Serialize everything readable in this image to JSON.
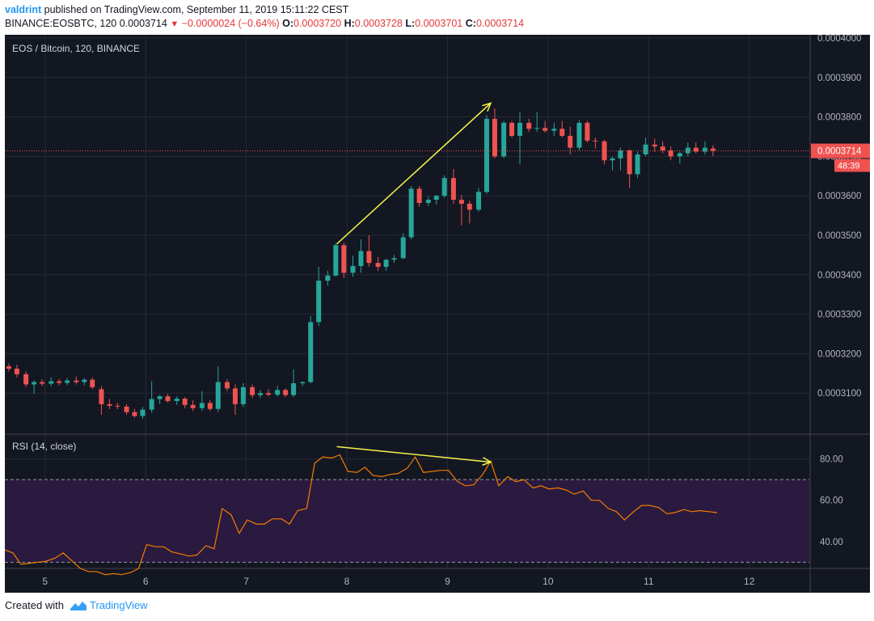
{
  "header": {
    "author": "valdrint",
    "published_text": "published on TradingView.com, September 11, 2019 15:11:22 CEST",
    "symbol": "BINANCE:EOSBTC, 120",
    "last_price": "0.0003714",
    "change": "−0.0000024 (−0.64%)",
    "o_label": "O:",
    "o_value": "0.0003720",
    "h_label": "H:",
    "h_value": "0.0003728",
    "l_label": "L:",
    "l_value": "0.0003701",
    "c_label": "C:",
    "c_value": "0.0003714"
  },
  "footer": {
    "created_with": "Created with",
    "brand": "TradingView"
  },
  "colors": {
    "background": "#131722",
    "up": "#26a69a",
    "down": "#ef5350",
    "rsi_line": "#f57c00",
    "annotation": "#f5f548",
    "rsi_band": "#2a1a3f",
    "price_tag": "#ef5350"
  },
  "chart_data": [
    {
      "type": "candlestick",
      "title": "EOS / Bitcoin, 120, BINANCE",
      "x_ticks": [
        "5",
        "6",
        "7",
        "8",
        "9",
        "10",
        "11",
        "12"
      ],
      "y_ticks": [
        "0.0003100",
        "0.0003200",
        "0.0003300",
        "0.0003400",
        "0.0003500",
        "0.0003600",
        "0.0003700",
        "0.0003800",
        "0.0003900",
        "0.0004000"
      ],
      "ylim": [
        0.0003,
        0.0004
      ],
      "xlim": [
        4.6,
        13.2
      ],
      "last_price_tag": "0.0003714",
      "countdown_tag": "48:39",
      "candles": [
        {
          "t": 4.64,
          "o": 0.0003168,
          "h": 0.0003175,
          "l": 0.0003155,
          "c": 0.0003162
        },
        {
          "t": 4.72,
          "o": 0.0003162,
          "h": 0.0003172,
          "l": 0.000314,
          "c": 0.0003148
        },
        {
          "t": 4.81,
          "o": 0.0003148,
          "h": 0.0003155,
          "l": 0.0003115,
          "c": 0.0003122
        },
        {
          "t": 4.89,
          "o": 0.0003122,
          "h": 0.0003132,
          "l": 0.0003098,
          "c": 0.0003128
        },
        {
          "t": 4.97,
          "o": 0.0003128,
          "h": 0.0003135,
          "l": 0.0003118,
          "c": 0.0003124
        },
        {
          "t": 5.06,
          "o": 0.0003124,
          "h": 0.000314,
          "l": 0.0003118,
          "c": 0.000313
        },
        {
          "t": 5.14,
          "o": 0.000313,
          "h": 0.0003136,
          "l": 0.000312,
          "c": 0.0003126
        },
        {
          "t": 5.22,
          "o": 0.0003126,
          "h": 0.0003138,
          "l": 0.000312,
          "c": 0.0003132
        },
        {
          "t": 5.31,
          "o": 0.0003132,
          "h": 0.0003142,
          "l": 0.0003122,
          "c": 0.0003128
        },
        {
          "t": 5.39,
          "o": 0.0003128,
          "h": 0.0003138,
          "l": 0.000312,
          "c": 0.0003134
        },
        {
          "t": 5.47,
          "o": 0.0003134,
          "h": 0.000314,
          "l": 0.000311,
          "c": 0.0003115
        },
        {
          "t": 5.56,
          "o": 0.000311,
          "h": 0.0003118,
          "l": 0.0003045,
          "c": 0.0003072
        },
        {
          "t": 5.64,
          "o": 0.0003072,
          "h": 0.0003085,
          "l": 0.000306,
          "c": 0.0003068
        },
        {
          "t": 5.72,
          "o": 0.0003068,
          "h": 0.0003075,
          "l": 0.000306,
          "c": 0.0003066
        },
        {
          "t": 5.81,
          "o": 0.0003066,
          "h": 0.0003072,
          "l": 0.0003045,
          "c": 0.0003052
        },
        {
          "t": 5.89,
          "o": 0.0003052,
          "h": 0.000306,
          "l": 0.0003038,
          "c": 0.0003042
        },
        {
          "t": 5.97,
          "o": 0.0003042,
          "h": 0.0003065,
          "l": 0.0003035,
          "c": 0.0003058
        },
        {
          "t": 6.06,
          "o": 0.0003058,
          "h": 0.000313,
          "l": 0.000305,
          "c": 0.0003085
        },
        {
          "t": 6.14,
          "o": 0.0003085,
          "h": 0.0003095,
          "l": 0.0003072,
          "c": 0.0003092
        },
        {
          "t": 6.22,
          "o": 0.0003092,
          "h": 0.0003098,
          "l": 0.0003076,
          "c": 0.000308
        },
        {
          "t": 6.31,
          "o": 0.000308,
          "h": 0.0003092,
          "l": 0.000307,
          "c": 0.0003086
        },
        {
          "t": 6.39,
          "o": 0.0003086,
          "h": 0.000309,
          "l": 0.0003062,
          "c": 0.000307
        },
        {
          "t": 6.47,
          "o": 0.000307,
          "h": 0.0003082,
          "l": 0.0003055,
          "c": 0.0003062
        },
        {
          "t": 6.56,
          "o": 0.0003062,
          "h": 0.0003105,
          "l": 0.0003055,
          "c": 0.0003075
        },
        {
          "t": 6.64,
          "o": 0.0003075,
          "h": 0.0003082,
          "l": 0.0003055,
          "c": 0.000306
        },
        {
          "t": 6.72,
          "o": 0.000306,
          "h": 0.0003168,
          "l": 0.0003052,
          "c": 0.0003128
        },
        {
          "t": 6.81,
          "o": 0.0003128,
          "h": 0.0003135,
          "l": 0.0003105,
          "c": 0.0003112
        },
        {
          "t": 6.89,
          "o": 0.0003112,
          "h": 0.0003122,
          "l": 0.0003045,
          "c": 0.0003072
        },
        {
          "t": 6.97,
          "o": 0.0003072,
          "h": 0.0003125,
          "l": 0.0003065,
          "c": 0.0003115
        },
        {
          "t": 7.06,
          "o": 0.0003115,
          "h": 0.0003122,
          "l": 0.0003088,
          "c": 0.0003095
        },
        {
          "t": 7.14,
          "o": 0.0003095,
          "h": 0.0003108,
          "l": 0.0003088,
          "c": 0.00031
        },
        {
          "t": 7.22,
          "o": 0.00031,
          "h": 0.000311,
          "l": 0.0003092,
          "c": 0.0003096
        },
        {
          "t": 7.31,
          "o": 0.0003096,
          "h": 0.0003118,
          "l": 0.0003092,
          "c": 0.0003108
        },
        {
          "t": 7.39,
          "o": 0.0003108,
          "h": 0.0003112,
          "l": 0.000309,
          "c": 0.0003095
        },
        {
          "t": 7.47,
          "o": 0.0003095,
          "h": 0.000316,
          "l": 0.000309,
          "c": 0.0003125
        },
        {
          "t": 7.56,
          "o": 0.0003125,
          "h": 0.000313,
          "l": 0.0003118,
          "c": 0.0003128
        },
        {
          "t": 7.64,
          "o": 0.0003128,
          "h": 0.0003295,
          "l": 0.0003125,
          "c": 0.000328
        },
        {
          "t": 7.72,
          "o": 0.000328,
          "h": 0.000342,
          "l": 0.000327,
          "c": 0.0003385
        },
        {
          "t": 7.81,
          "o": 0.0003385,
          "h": 0.000341,
          "l": 0.0003372,
          "c": 0.0003398
        },
        {
          "t": 7.89,
          "o": 0.0003398,
          "h": 0.000348,
          "l": 0.0003395,
          "c": 0.0003475
        },
        {
          "t": 7.97,
          "o": 0.0003475,
          "h": 0.0003482,
          "l": 0.0003392,
          "c": 0.0003405
        },
        {
          "t": 8.06,
          "o": 0.0003405,
          "h": 0.0003448,
          "l": 0.0003395,
          "c": 0.0003422
        },
        {
          "t": 8.14,
          "o": 0.0003422,
          "h": 0.000349,
          "l": 0.0003405,
          "c": 0.000346
        },
        {
          "t": 8.22,
          "o": 0.000346,
          "h": 0.00035,
          "l": 0.000342,
          "c": 0.000343
        },
        {
          "t": 8.31,
          "o": 0.000343,
          "h": 0.0003445,
          "l": 0.000341,
          "c": 0.000342
        },
        {
          "t": 8.39,
          "o": 0.000342,
          "h": 0.000344,
          "l": 0.000341,
          "c": 0.0003438
        },
        {
          "t": 8.47,
          "o": 0.0003438,
          "h": 0.000345,
          "l": 0.000343,
          "c": 0.0003442
        },
        {
          "t": 8.56,
          "o": 0.0003442,
          "h": 0.0003505,
          "l": 0.000344,
          "c": 0.0003495
        },
        {
          "t": 8.64,
          "o": 0.0003495,
          "h": 0.0003625,
          "l": 0.000349,
          "c": 0.0003618
        },
        {
          "t": 8.72,
          "o": 0.0003618,
          "h": 0.0003625,
          "l": 0.0003572,
          "c": 0.0003582
        },
        {
          "t": 8.81,
          "o": 0.0003582,
          "h": 0.0003598,
          "l": 0.0003575,
          "c": 0.000359
        },
        {
          "t": 8.89,
          "o": 0.000359,
          "h": 0.0003602,
          "l": 0.0003578,
          "c": 0.00036
        },
        {
          "t": 8.97,
          "o": 0.00036,
          "h": 0.0003652,
          "l": 0.0003595,
          "c": 0.0003645
        },
        {
          "t": 9.06,
          "o": 0.0003645,
          "h": 0.0003668,
          "l": 0.000358,
          "c": 0.000359
        },
        {
          "t": 9.14,
          "o": 0.000359,
          "h": 0.0003602,
          "l": 0.0003525,
          "c": 0.000358
        },
        {
          "t": 9.22,
          "o": 0.000358,
          "h": 0.0003588,
          "l": 0.000353,
          "c": 0.0003565
        },
        {
          "t": 9.31,
          "o": 0.0003565,
          "h": 0.000362,
          "l": 0.000356,
          "c": 0.000361
        },
        {
          "t": 9.39,
          "o": 0.000361,
          "h": 0.0003805,
          "l": 0.0003605,
          "c": 0.0003795
        },
        {
          "t": 9.47,
          "o": 0.0003795,
          "h": 0.0003822,
          "l": 0.0003695,
          "c": 0.00037
        },
        {
          "t": 9.56,
          "o": 0.00037,
          "h": 0.000379,
          "l": 0.0003695,
          "c": 0.0003785
        },
        {
          "t": 9.64,
          "o": 0.0003785,
          "h": 0.000379,
          "l": 0.0003748,
          "c": 0.0003752
        },
        {
          "t": 9.72,
          "o": 0.0003752,
          "h": 0.0003812,
          "l": 0.000368,
          "c": 0.0003785
        },
        {
          "t": 9.81,
          "o": 0.0003785,
          "h": 0.0003795,
          "l": 0.0003762,
          "c": 0.000377
        },
        {
          "t": 9.89,
          "o": 0.000377,
          "h": 0.0003812,
          "l": 0.0003762,
          "c": 0.0003772
        },
        {
          "t": 9.97,
          "o": 0.0003772,
          "h": 0.000379,
          "l": 0.000376,
          "c": 0.0003765
        },
        {
          "t": 10.06,
          "o": 0.0003765,
          "h": 0.0003785,
          "l": 0.0003752,
          "c": 0.000377
        },
        {
          "t": 10.14,
          "o": 0.000377,
          "h": 0.000379,
          "l": 0.0003748,
          "c": 0.0003752
        },
        {
          "t": 10.22,
          "o": 0.0003752,
          "h": 0.0003775,
          "l": 0.0003705,
          "c": 0.0003722
        },
        {
          "t": 10.31,
          "o": 0.0003722,
          "h": 0.0003792,
          "l": 0.0003715,
          "c": 0.0003785
        },
        {
          "t": 10.39,
          "o": 0.0003785,
          "h": 0.000379,
          "l": 0.0003735,
          "c": 0.000374
        },
        {
          "t": 10.47,
          "o": 0.000374,
          "h": 0.0003748,
          "l": 0.000372,
          "c": 0.0003738
        },
        {
          "t": 10.56,
          "o": 0.0003738,
          "h": 0.0003742,
          "l": 0.000368,
          "c": 0.000369
        },
        {
          "t": 10.64,
          "o": 0.000369,
          "h": 0.00037,
          "l": 0.0003665,
          "c": 0.0003695
        },
        {
          "t": 10.72,
          "o": 0.0003695,
          "h": 0.0003722,
          "l": 0.0003665,
          "c": 0.0003715
        },
        {
          "t": 10.81,
          "o": 0.0003715,
          "h": 0.0003718,
          "l": 0.000362,
          "c": 0.0003655
        },
        {
          "t": 10.89,
          "o": 0.0003655,
          "h": 0.0003712,
          "l": 0.0003645,
          "c": 0.0003705
        },
        {
          "t": 10.97,
          "o": 0.0003705,
          "h": 0.0003748,
          "l": 0.00037,
          "c": 0.000373
        },
        {
          "t": 11.06,
          "o": 0.000373,
          "h": 0.0003745,
          "l": 0.0003712,
          "c": 0.0003725
        },
        {
          "t": 11.14,
          "o": 0.0003725,
          "h": 0.0003738,
          "l": 0.0003708,
          "c": 0.0003715
        },
        {
          "t": 11.22,
          "o": 0.0003715,
          "h": 0.0003725,
          "l": 0.000369,
          "c": 0.00037
        },
        {
          "t": 11.31,
          "o": 0.00037,
          "h": 0.0003712,
          "l": 0.0003682,
          "c": 0.0003708
        },
        {
          "t": 11.39,
          "o": 0.0003708,
          "h": 0.0003735,
          "l": 0.00037,
          "c": 0.0003722
        },
        {
          "t": 11.47,
          "o": 0.0003722,
          "h": 0.0003735,
          "l": 0.0003708,
          "c": 0.0003712
        },
        {
          "t": 11.56,
          "o": 0.0003712,
          "h": 0.0003738,
          "l": 0.0003705,
          "c": 0.0003722
        },
        {
          "t": 11.64,
          "o": 0.000372,
          "h": 0.0003728,
          "l": 0.0003701,
          "c": 0.0003714
        }
      ],
      "annotation": {
        "from": [
          7.9,
          0.0003478
        ],
        "to": [
          9.43,
          0.0003835
        ]
      }
    },
    {
      "type": "line",
      "title": "RSI (14, close)",
      "y_ticks": [
        "40.00",
        "60.00",
        "80.00"
      ],
      "ylim": [
        27,
        92
      ],
      "band": [
        30,
        70
      ],
      "x": [
        4.6,
        4.68,
        4.76,
        4.85,
        4.93,
        5.01,
        5.1,
        5.18,
        5.26,
        5.35,
        5.43,
        5.51,
        5.6,
        5.68,
        5.76,
        5.85,
        5.93,
        6.01,
        6.1,
        6.18,
        6.26,
        6.35,
        6.43,
        6.51,
        6.6,
        6.68,
        6.76,
        6.85,
        6.93,
        7.01,
        7.1,
        7.18,
        7.26,
        7.35,
        7.43,
        7.51,
        7.6,
        7.68,
        7.76,
        7.85,
        7.93,
        8.01,
        8.1,
        8.18,
        8.26,
        8.35,
        8.43,
        8.51,
        8.6,
        8.68,
        8.76,
        8.85,
        8.93,
        9.01,
        9.1,
        9.18,
        9.26,
        9.35,
        9.43,
        9.51,
        9.6,
        9.68,
        9.76,
        9.85,
        9.93,
        10.01,
        10.1,
        10.18,
        10.26,
        10.35,
        10.43,
        10.51,
        10.6,
        10.68,
        10.76,
        10.85,
        10.93,
        11.01,
        11.1,
        11.18,
        11.26,
        11.35,
        11.43,
        11.51,
        11.6,
        11.68
      ],
      "values": [
        36,
        34.5,
        29,
        29.5,
        30,
        30.5,
        32,
        34.5,
        31,
        27,
        25.5,
        25.5,
        24,
        24.5,
        24,
        25,
        27,
        38.5,
        37.5,
        37.5,
        35,
        34,
        33,
        33.5,
        38,
        36.5,
        56,
        53,
        44,
        50.5,
        48.5,
        48.5,
        51,
        51,
        48.5,
        55,
        56,
        78,
        81,
        80.5,
        82,
        74,
        73.5,
        76,
        72,
        71.5,
        72.5,
        73,
        75.5,
        81,
        73.5,
        74,
        74.5,
        74.5,
        69,
        67,
        67.5,
        72.5,
        79,
        67,
        71.5,
        69,
        70,
        66,
        67,
        65.5,
        66,
        65,
        63,
        64.5,
        60,
        60,
        56,
        54.5,
        50.5,
        54.5,
        57.5,
        57.5,
        56.5,
        53.5,
        54,
        55.5,
        54.5,
        55,
        54.5,
        54
      ],
      "annotation": {
        "from": [
          7.9,
          86
        ],
        "to": [
          9.43,
          78.5
        ]
      }
    }
  ]
}
